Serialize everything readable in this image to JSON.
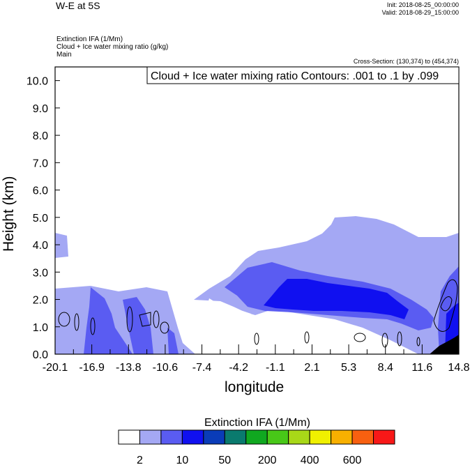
{
  "header": {
    "title": "W-E at 5S",
    "init": "Init: 2018-08-25_00:00:00",
    "valid": "Valid: 2018-08-29_15:00:00",
    "fields": [
      "Extinction IFA   (1/Mm)",
      "Cloud + Ice water mixing ratio   (g/kg)",
      "Main"
    ],
    "cross_section": "Cross-Section: (130,374) to (454,374)"
  },
  "chart_data": {
    "type": "heatmap",
    "contour_label": "Cloud + Ice water mixing ratio Contours: .001 to .1 by .099",
    "xlabel": "longitude",
    "ylabel": "Height (km)",
    "x_ticks": [
      "-20.1",
      "-16.9",
      "-13.8",
      "-10.6",
      "-7.4",
      "-4.2",
      "-1.1",
      "2.1",
      "5.3",
      "8.4",
      "11.6",
      "14.8"
    ],
    "y_ticks": [
      "0.0",
      "1.0",
      "2.0",
      "3.0",
      "4.0",
      "5.0",
      "6.0",
      "7.0",
      "8.0",
      "9.0",
      "10.0"
    ],
    "ylim": [
      0,
      10.5
    ],
    "colorbar": {
      "title": "Extinction IFA  (1/Mm)",
      "colors": [
        "#ffffff",
        "#a4a8f4",
        "#5a5cf2",
        "#1010f0",
        "#0a3cb8",
        "#0a7a6e",
        "#10a820",
        "#48c818",
        "#a8d818",
        "#f0f000",
        "#f8b000",
        "#f86010",
        "#f81818"
      ],
      "labels": [
        "2",
        "10",
        "50",
        "200",
        "400",
        "600"
      ]
    }
  }
}
